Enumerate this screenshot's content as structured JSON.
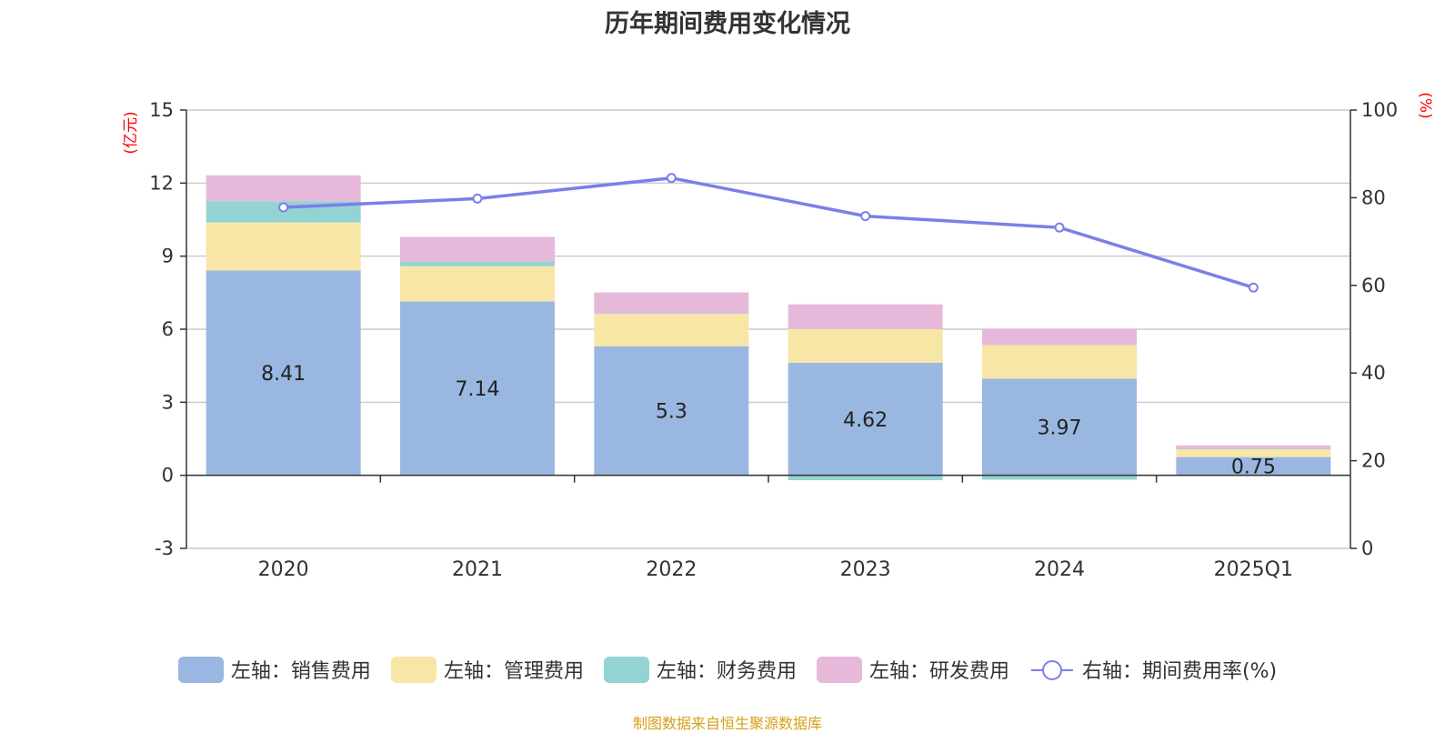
{
  "title": "历年期间费用变化情况",
  "source": "制图数据来自恒生聚源数据库",
  "left_axis_unit": "(亿元)",
  "right_axis_unit": "(%)",
  "colors": {
    "sales": "#9ab7e2",
    "admin": "#f8e6a6",
    "finance": "#93d3d4",
    "rd": "#e6b9da",
    "rate": "#7b7fe8"
  },
  "legend": [
    {
      "key": "sales",
      "label": "左轴：销售费用"
    },
    {
      "key": "admin",
      "label": "左轴：管理费用"
    },
    {
      "key": "finance",
      "label": "左轴：财务费用"
    },
    {
      "key": "rd",
      "label": "左轴：研发费用"
    },
    {
      "key": "rate",
      "label": "右轴：期间费用率(%)"
    }
  ],
  "chart_data": {
    "type": "bar",
    "stacked": true,
    "categories": [
      "2020",
      "2021",
      "2022",
      "2023",
      "2024",
      "2025Q1"
    ],
    "series": [
      {
        "key": "sales",
        "name": "左轴：销售费用",
        "axis": "left",
        "values": [
          8.41,
          7.14,
          5.3,
          4.62,
          3.97,
          0.75
        ],
        "show_labels": true
      },
      {
        "key": "admin",
        "name": "左轴：管理费用",
        "axis": "left",
        "values": [
          1.97,
          1.45,
          1.33,
          1.38,
          1.38,
          0.32
        ]
      },
      {
        "key": "finance",
        "name": "左轴：财务费用",
        "axis": "left",
        "values": [
          0.88,
          0.2,
          0.03,
          -0.2,
          -0.18,
          0.02
        ]
      },
      {
        "key": "rd",
        "name": "左轴：研发费用",
        "axis": "left",
        "values": [
          1.06,
          1.0,
          0.85,
          1.02,
          0.67,
          0.14
        ]
      },
      {
        "key": "rate",
        "name": "右轴：期间费用率(%)",
        "axis": "right",
        "type": "line",
        "values": [
          77.8,
          79.8,
          84.5,
          75.8,
          73.2,
          59.5
        ]
      }
    ],
    "left_axis": {
      "min": -3,
      "max": 15,
      "ticks": [
        -3,
        0,
        3,
        6,
        9,
        12,
        15
      ]
    },
    "right_axis": {
      "min": 0,
      "max": 100,
      "ticks": [
        0,
        20,
        40,
        60,
        80,
        100
      ]
    },
    "grid": true,
    "legend_position": "bottom"
  }
}
